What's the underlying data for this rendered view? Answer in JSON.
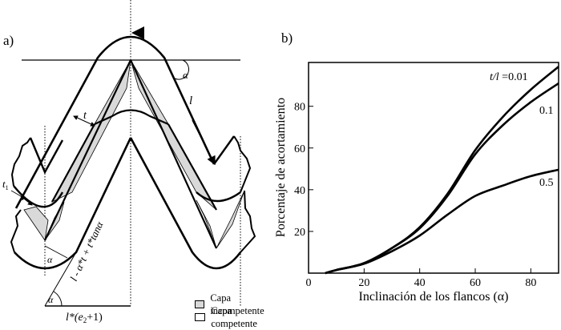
{
  "panel_a": {
    "label": "a)",
    "symbols": {
      "alpha_top": "α",
      "length": "l",
      "thickness": "t",
      "thickness_1": "t",
      "thickness_1_sub": "1",
      "alpha_hinge": "α",
      "alpha_base": "α",
      "slope_formula": "l - α*t + t*tanα",
      "base_formula": "l*(e",
      "base_formula_sub": "2",
      "base_formula_end": "+1)"
    },
    "legend": [
      {
        "label": "Capa incompetente",
        "color": "#d9d9d9"
      },
      {
        "label": "Capa competente",
        "color": "#ffffff"
      }
    ]
  },
  "panel_b": {
    "label": "b)"
  },
  "chart_data": {
    "type": "line",
    "title": "",
    "xlabel": "Inclinación de los flancos (α)",
    "ylabel": "Porcentaje de acortamiento",
    "xlim": [
      0,
      90
    ],
    "ylim": [
      0,
      101
    ],
    "xticks": [
      0,
      20,
      40,
      60,
      80
    ],
    "yticks": [
      20,
      40,
      60,
      80
    ],
    "grid": false,
    "legend_position": "inline-right",
    "x": [
      6,
      10,
      20,
      30,
      40,
      50,
      60,
      70,
      80,
      90
    ],
    "series": [
      {
        "name": "t/l =0.01",
        "label": "t/l =0.01",
        "values": [
          0,
          1.5,
          4.8,
          12,
          22,
          38,
          59,
          75,
          88,
          99
        ]
      },
      {
        "name": "0.1",
        "label": "0.1",
        "values": [
          0,
          1.5,
          4.8,
          12,
          21.5,
          37,
          57,
          71,
          82,
          91
        ]
      },
      {
        "name": "0.5",
        "label": "0.5",
        "values": [
          0,
          1.5,
          4.5,
          10.5,
          18,
          28,
          37,
          42,
          46.5,
          49.6
        ]
      }
    ]
  }
}
